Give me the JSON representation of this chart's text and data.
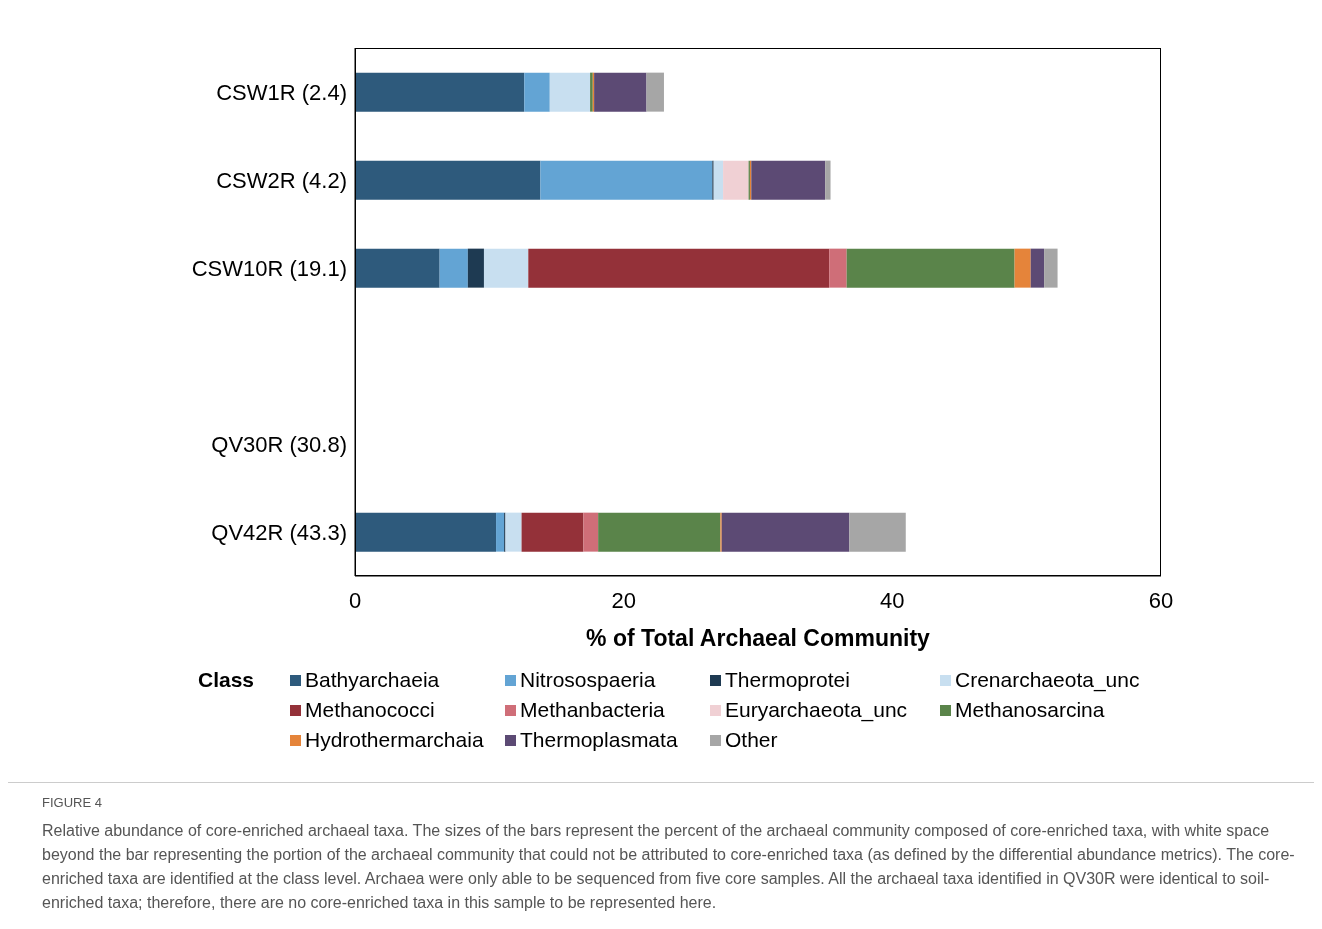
{
  "chart_data": {
    "type": "bar",
    "orientation": "horizontal",
    "stacked": true,
    "categories": [
      "CSW1R (2.4)",
      "CSW2R (4.2)",
      "CSW10R (19.1)",
      null,
      "QV30R (30.8)",
      "QV42R (43.3)"
    ],
    "series": [
      {
        "name": "Bathyarchaeia",
        "color": "#2e5a7c",
        "values": [
          12.6,
          13.8,
          6.3,
          null,
          null,
          10.5
        ]
      },
      {
        "name": "Nitrosospaeria",
        "color": "#63a4d4",
        "values": [
          1.9,
          12.8,
          2.1,
          null,
          null,
          0.6
        ]
      },
      {
        "name": "Thermoprotei",
        "color": "#1e3a52",
        "values": [
          null,
          0.1,
          1.2,
          null,
          null,
          0.1
        ]
      },
      {
        "name": "Crenarchaeota_unc",
        "color": "#c8dff0",
        "values": [
          3.0,
          0.7,
          3.3,
          null,
          null,
          1.2
        ]
      },
      {
        "name": "Methanococci",
        "color": "#943139",
        "values": [
          null,
          null,
          22.4,
          null,
          null,
          4.6
        ]
      },
      {
        "name": "Methanbacteria",
        "color": "#cf6e78",
        "values": [
          null,
          null,
          1.3,
          null,
          null,
          1.1
        ]
      },
      {
        "name": "Euryarchaeota_unc",
        "color": "#f0d0d4",
        "values": [
          null,
          1.9,
          null,
          null,
          null,
          null
        ]
      },
      {
        "name": "Methanosarcina",
        "color": "#5a844a",
        "values": [
          0.2,
          0.1,
          12.5,
          null,
          null,
          9.1
        ]
      },
      {
        "name": "Hydrothermarchaia",
        "color": "#e5843a",
        "values": [
          0.1,
          0.1,
          1.2,
          null,
          null,
          0.1
        ]
      },
      {
        "name": "Thermoplasmata",
        "color": "#5c4a74",
        "values": [
          3.9,
          5.5,
          1.0,
          null,
          null,
          9.5
        ]
      },
      {
        "name": "Other",
        "color": "#a6a6a6",
        "values": [
          1.3,
          0.4,
          1.0,
          null,
          null,
          4.2
        ]
      }
    ],
    "xlim": [
      0,
      60
    ],
    "xticks": [
      0,
      20,
      40,
      60
    ],
    "xlabel": "% of Total Archaeal Community",
    "legend_title": "Class",
    "legend": "bottom",
    "grid": false,
    "annotations": [
      "FIGURE 4",
      "Relative abundance of core-enriched archaeal taxa. The sizes of the bars represent the percent of the archaeal community composed of core-enriched taxa, with white space beyond the bar representing the portion of the archaeal community that could not be attributed to core-enriched taxa (as defined by the differential abundance metrics). The core-enriched taxa are identified at the class level. Archaea were only able to be sequenced from five core samples. All the archaeal taxa identified in QV30R were identical to soil-enriched taxa; therefore, there are no core-enriched taxa in this sample to be represented here."
    ]
  }
}
